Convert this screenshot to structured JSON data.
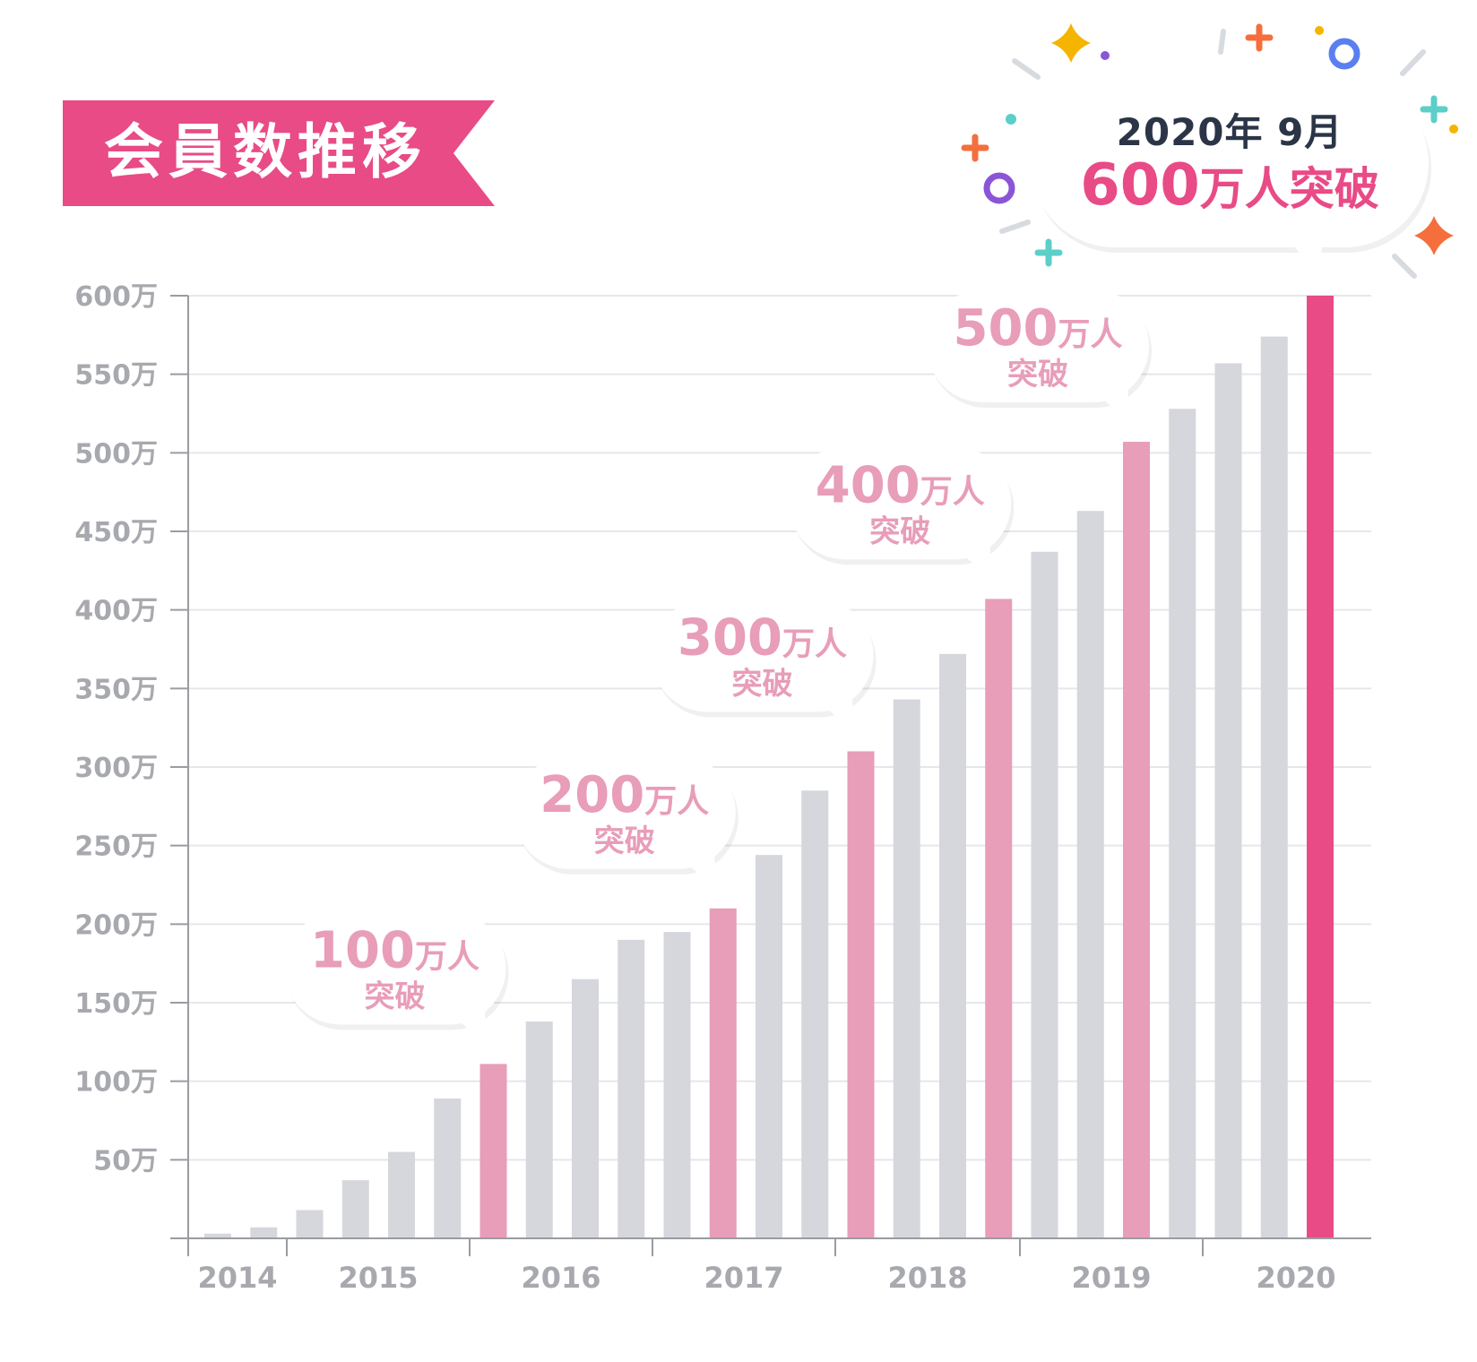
{
  "title": "会員数推移",
  "headline": {
    "date": "2020年 9月",
    "number": "600",
    "text": "万人突破"
  },
  "colors": {
    "bar_normal": "#d6d7dc",
    "bar_milestone": "#e89db9",
    "bar_final": "#e84b86",
    "accent": "#e84b86",
    "grid": "#e6e7ea",
    "axis": "#9a9ca2",
    "tick_text": "#a7a9ae",
    "headline_text": "#2b3547"
  },
  "chart_data": {
    "type": "bar",
    "y_unit_suffix": "万",
    "ylim": [
      0,
      600
    ],
    "yticks": [
      50,
      100,
      150,
      200,
      250,
      300,
      350,
      400,
      450,
      500,
      550,
      600
    ],
    "x_labels": [
      "2014",
      "2015",
      "2016",
      "2017",
      "2018",
      "2019",
      "2020"
    ],
    "values": [
      3,
      7,
      18,
      37,
      55,
      89,
      111,
      138,
      165,
      190,
      195,
      210,
      244,
      285,
      310,
      343,
      372,
      407,
      437,
      463,
      507,
      528,
      557,
      574,
      600
    ],
    "milestones": [
      {
        "bar_index": 6,
        "number": "100",
        "unit": "万人",
        "label2": "突破"
      },
      {
        "bar_index": 11,
        "number": "200",
        "unit": "万人",
        "label2": "突破"
      },
      {
        "bar_index": 14,
        "number": "300",
        "unit": "万人",
        "label2": "突破"
      },
      {
        "bar_index": 17,
        "number": "400",
        "unit": "万人",
        "label2": "突破"
      },
      {
        "bar_index": 20,
        "number": "500",
        "unit": "万人",
        "label2": "突破"
      }
    ],
    "final_bar_index": 24
  }
}
